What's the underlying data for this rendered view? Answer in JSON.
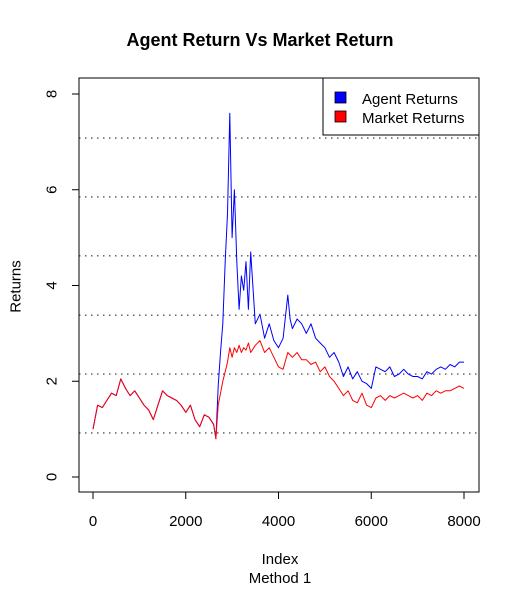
{
  "chart_data": {
    "type": "line",
    "title": "Agent Return Vs Market Return",
    "xlabel": "Index",
    "subtitle": "Method 1",
    "ylabel": "Returns",
    "xlim": [
      0,
      8000
    ],
    "ylim": [
      0,
      8
    ],
    "x_ticks": [
      "0",
      "2000",
      "4000",
      "6000",
      "8000"
    ],
    "y_ticks": [
      "0",
      "2",
      "4",
      "6",
      "8"
    ],
    "gridlines_y": [
      0.92,
      2.15,
      3.38,
      4.62,
      5.85,
      7.08
    ],
    "grid": "horizontal dotted",
    "legend": "top-right",
    "colors": {
      "agent": "#0000ff",
      "market": "#ff0000",
      "grid": "#555555"
    },
    "series": [
      {
        "name": "Agent Returns",
        "color": "#0000ff",
        "x": [
          0,
          100,
          200,
          300,
          400,
          500,
          600,
          700,
          800,
          900,
          1000,
          1100,
          1200,
          1300,
          1400,
          1500,
          1600,
          1700,
          1800,
          1900,
          2000,
          2100,
          2200,
          2300,
          2400,
          2500,
          2600,
          2650,
          2700,
          2750,
          2800,
          2850,
          2900,
          2950,
          3000,
          3050,
          3100,
          3150,
          3200,
          3250,
          3300,
          3350,
          3400,
          3500,
          3600,
          3700,
          3800,
          3900,
          4000,
          4100,
          4200,
          4250,
          4300,
          4400,
          4500,
          4600,
          4700,
          4800,
          4900,
          5000,
          5100,
          5200,
          5300,
          5400,
          5500,
          5600,
          5700,
          5800,
          5900,
          6000,
          6100,
          6200,
          6300,
          6400,
          6500,
          6600,
          6700,
          6800,
          6900,
          7000,
          7100,
          7200,
          7300,
          7400,
          7500,
          7600,
          7700,
          7800,
          7900,
          8000
        ],
        "values": [
          1.0,
          1.5,
          1.45,
          1.6,
          1.75,
          1.7,
          2.05,
          1.85,
          1.7,
          1.8,
          1.65,
          1.5,
          1.4,
          1.2,
          1.5,
          1.8,
          1.7,
          1.65,
          1.6,
          1.5,
          1.35,
          1.5,
          1.2,
          1.05,
          1.3,
          1.25,
          1.1,
          0.8,
          1.9,
          2.6,
          3.2,
          4.5,
          5.5,
          7.6,
          5.0,
          6.0,
          4.5,
          3.5,
          4.2,
          3.9,
          4.5,
          3.5,
          4.7,
          3.2,
          3.4,
          2.9,
          3.2,
          2.85,
          2.7,
          2.9,
          3.8,
          3.3,
          3.1,
          3.3,
          3.2,
          3.0,
          3.2,
          2.9,
          2.8,
          2.7,
          2.5,
          2.6,
          2.4,
          2.1,
          2.3,
          2.05,
          2.2,
          2.0,
          1.95,
          1.85,
          2.3,
          2.25,
          2.2,
          2.3,
          2.1,
          2.15,
          2.25,
          2.15,
          2.1,
          2.1,
          2.05,
          2.2,
          2.15,
          2.25,
          2.3,
          2.25,
          2.35,
          2.3,
          2.4,
          2.4
        ]
      },
      {
        "name": "Market Returns",
        "color": "#ff0000",
        "x": [
          0,
          100,
          200,
          300,
          400,
          500,
          600,
          700,
          800,
          900,
          1000,
          1100,
          1200,
          1300,
          1400,
          1500,
          1600,
          1700,
          1800,
          1900,
          2000,
          2100,
          2200,
          2300,
          2400,
          2500,
          2600,
          2650,
          2700,
          2750,
          2800,
          2850,
          2900,
          2950,
          3000,
          3050,
          3100,
          3150,
          3200,
          3250,
          3300,
          3350,
          3400,
          3500,
          3600,
          3700,
          3800,
          3900,
          4000,
          4100,
          4200,
          4250,
          4300,
          4400,
          4500,
          4600,
          4700,
          4800,
          4900,
          5000,
          5100,
          5200,
          5300,
          5400,
          5500,
          5600,
          5700,
          5800,
          5900,
          6000,
          6100,
          6200,
          6300,
          6400,
          6500,
          6600,
          6700,
          6800,
          6900,
          7000,
          7100,
          7200,
          7300,
          7400,
          7500,
          7600,
          7700,
          7800,
          7900,
          8000
        ],
        "values": [
          1.0,
          1.5,
          1.45,
          1.6,
          1.75,
          1.7,
          2.05,
          1.85,
          1.7,
          1.8,
          1.65,
          1.5,
          1.4,
          1.2,
          1.5,
          1.8,
          1.7,
          1.65,
          1.6,
          1.5,
          1.35,
          1.5,
          1.2,
          1.05,
          1.3,
          1.25,
          1.1,
          0.8,
          1.5,
          1.75,
          2.0,
          2.2,
          2.4,
          2.7,
          2.5,
          2.7,
          2.6,
          2.75,
          2.6,
          2.7,
          2.65,
          2.8,
          2.6,
          2.75,
          2.85,
          2.6,
          2.7,
          2.5,
          2.3,
          2.25,
          2.6,
          2.55,
          2.5,
          2.6,
          2.45,
          2.45,
          2.35,
          2.4,
          2.2,
          2.3,
          2.1,
          2.0,
          1.85,
          1.7,
          1.8,
          1.6,
          1.55,
          1.75,
          1.5,
          1.45,
          1.65,
          1.7,
          1.6,
          1.7,
          1.65,
          1.7,
          1.75,
          1.7,
          1.65,
          1.7,
          1.6,
          1.75,
          1.7,
          1.8,
          1.75,
          1.8,
          1.8,
          1.85,
          1.9,
          1.85
        ]
      }
    ]
  }
}
